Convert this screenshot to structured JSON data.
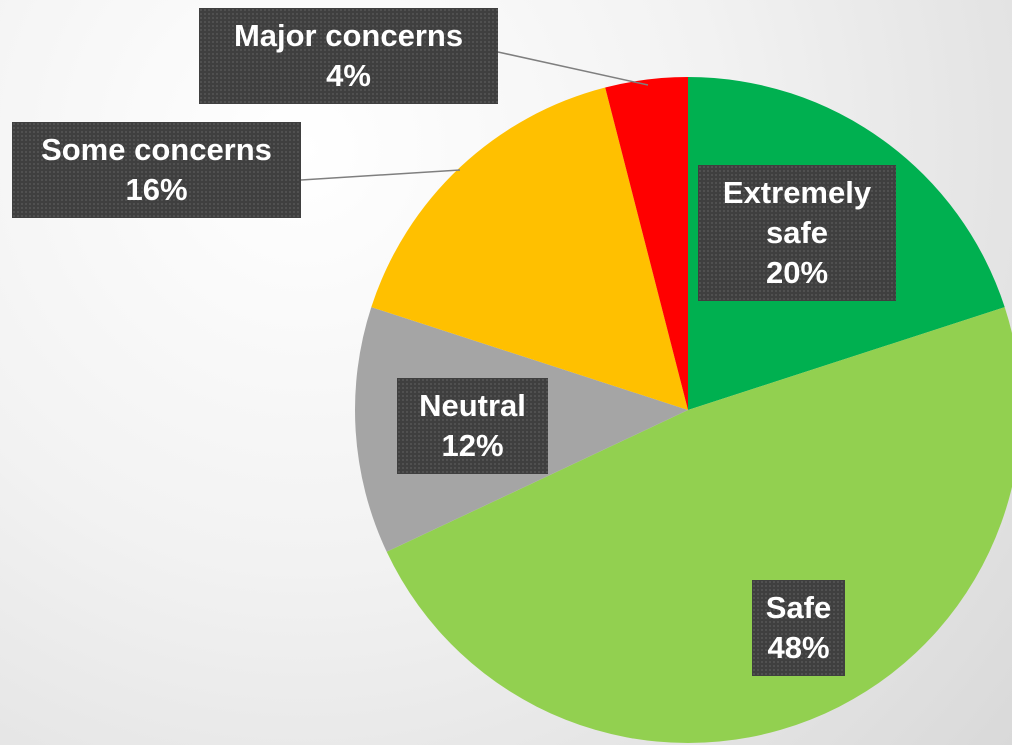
{
  "chart_data": {
    "type": "pie",
    "categories": [
      "Extremely safe",
      "Safe",
      "Neutral",
      "Some concerns",
      "Major concerns"
    ],
    "values": [
      20,
      48,
      12,
      16,
      4
    ],
    "value_labels": [
      "20%",
      "48%",
      "12%",
      "16%",
      "4%"
    ],
    "colors": [
      "#00b050",
      "#92d050",
      "#a5a5a5",
      "#ffc000",
      "#ff0000"
    ]
  }
}
